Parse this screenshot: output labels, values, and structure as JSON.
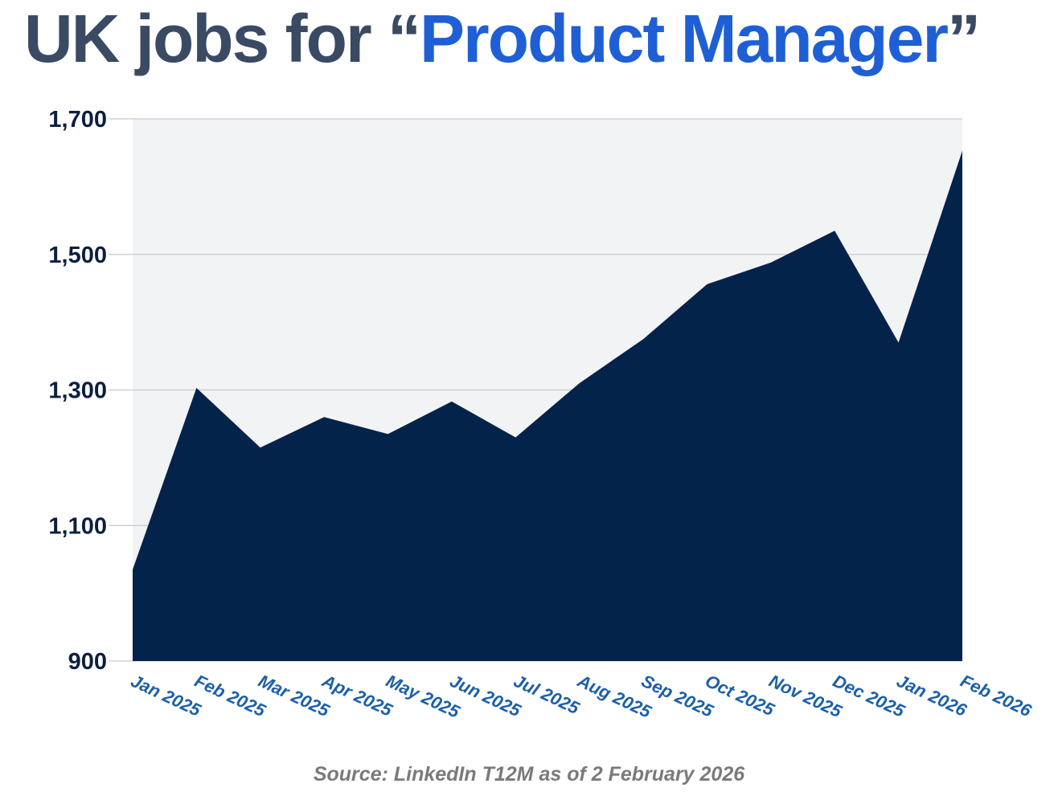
{
  "title": {
    "prefix": "UK jobs for “",
    "highlight": "Product Manager",
    "suffix": "”"
  },
  "source": "Source: LinkedIn T12M as of 2 February 2026",
  "colors": {
    "area_fill": "#04234a",
    "plot_background": "#f2f3f5",
    "gridline": "#c6c9cf",
    "title_text": "#3b4a63",
    "title_accent": "#1f5fd6",
    "y_tick_text": "#0c1f3f",
    "x_tick_text": "#1c5fa8",
    "source_text": "#7a7a7a"
  },
  "chart_data": {
    "type": "area",
    "title": "UK jobs for “Product Manager”",
    "categories": [
      "Jan 2025",
      "Feb 2025",
      "Mar 2025",
      "Apr 2025",
      "May 2025",
      "Jun 2025",
      "Jul 2025",
      "Aug 2025",
      "Sep 2025",
      "Oct 2025",
      "Nov 2025",
      "Dec 2025",
      "Jan 2026",
      "Feb 2026"
    ],
    "series": [
      {
        "values": [
          1035,
          1303,
          1215,
          1260,
          1235,
          1283,
          1230,
          1310,
          1375,
          1456,
          1488,
          1535,
          1370,
          1653
        ]
      }
    ],
    "ylim": [
      900,
      1700
    ],
    "yticks": [
      900,
      1100,
      1300,
      1500,
      1700
    ],
    "ytick_labels": [
      "900",
      "1,100",
      "1,300",
      "1,500",
      "1,700"
    ],
    "xlabel": "",
    "ylabel": "",
    "grid": true,
    "legend": "none"
  }
}
